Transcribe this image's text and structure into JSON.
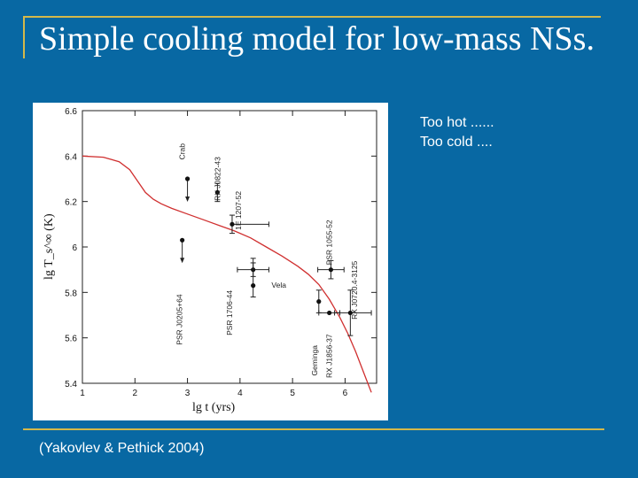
{
  "slide": {
    "title": "Simple cooling model for low-mass NSs.",
    "notes": [
      "Too hot ......",
      "Too cold ...."
    ],
    "citation": "(Yakovlev & Pethick 2004)"
  },
  "chart_data": {
    "type": "scatter",
    "title": "",
    "xlabel": "lg t   (yrs)",
    "ylabel": "lg T_s^∞  (K)",
    "xlim": [
      1,
      6.6
    ],
    "ylim": [
      5.4,
      6.6
    ],
    "xticks": [
      1,
      2,
      3,
      4,
      5,
      6
    ],
    "yticks": [
      5.4,
      5.6,
      5.8,
      6.0,
      6.2,
      6.4,
      6.6
    ],
    "xtick_labels": [
      "1",
      "2",
      "3",
      "4",
      "5",
      "6"
    ],
    "ytick_labels": [
      "5.4",
      "5.6",
      "5.8",
      "6",
      "6.2",
      "6.4",
      "6.6"
    ],
    "curve": {
      "name": "cooling curve",
      "color": "#d03030",
      "x": [
        1.0,
        1.4,
        1.7,
        1.9,
        2.05,
        2.2,
        2.35,
        2.5,
        2.7,
        3.0,
        3.3,
        3.6,
        3.9,
        4.2,
        4.5,
        4.8,
        5.1,
        5.3,
        5.5,
        5.7,
        5.9,
        6.05,
        6.2,
        6.3,
        6.4,
        6.5
      ],
      "y": [
        6.4,
        6.395,
        6.375,
        6.34,
        6.29,
        6.24,
        6.21,
        6.19,
        6.17,
        6.145,
        6.12,
        6.095,
        6.07,
        6.04,
        6.0,
        5.96,
        5.915,
        5.88,
        5.835,
        5.77,
        5.69,
        5.62,
        5.54,
        5.48,
        5.42,
        5.36
      ]
    },
    "sources": [
      {
        "name": "Crab",
        "x": 3.0,
        "y": 6.3,
        "xerr": [
          0,
          0
        ],
        "yerr": [
          0,
          0
        ],
        "upper_limit": true,
        "label_x": 2.95,
        "label_y": 6.42,
        "vertical": true
      },
      {
        "name": "RX J0822-43",
        "x": 3.57,
        "y": 6.24,
        "xerr": [
          0,
          0
        ],
        "yerr": [
          0.04,
          0.04
        ],
        "upper_limit": false,
        "label_x": 3.62,
        "label_y": 6.3,
        "vertical": true
      },
      {
        "name": "1E 1207-52",
        "x": 3.85,
        "y": 6.1,
        "xerr": [
          0,
          0.7
        ],
        "yerr": [
          0.04,
          0.04
        ],
        "upper_limit": false,
        "label_x": 4.02,
        "label_y": 6.16,
        "vertical": true
      },
      {
        "name": "PSR J0205+64",
        "x": 2.9,
        "y": 6.03,
        "xerr": [
          0,
          0
        ],
        "yerr": [
          0,
          0
        ],
        "upper_limit": true,
        "label_x": 2.9,
        "label_y": 5.68,
        "vertical": true
      },
      {
        "name": "PSR 1706-44",
        "x": 4.25,
        "y": 5.9,
        "xerr": [
          0.3,
          0.3
        ],
        "yerr": [
          0.03,
          0.03
        ],
        "upper_limit": false,
        "label_x": 3.85,
        "label_y": 5.71,
        "vertical": true
      },
      {
        "name": "Vela",
        "x": 4.25,
        "y": 5.83,
        "xerr": [
          0,
          0
        ],
        "yerr": [
          0.05,
          0.12
        ],
        "upper_limit": false,
        "label_x": 4.6,
        "label_y": 5.82,
        "vertical": false
      },
      {
        "name": "PSR 1055-52",
        "x": 5.73,
        "y": 5.9,
        "xerr": [
          0.25,
          0.25
        ],
        "yerr": [
          0.04,
          0.04
        ],
        "upper_limit": false,
        "label_x": 5.75,
        "label_y": 6.02,
        "vertical": true
      },
      {
        "name": "RX J0720.4-3125",
        "x": 6.1,
        "y": 5.71,
        "xerr": [
          0.3,
          0.4
        ],
        "yerr": [
          0.1,
          0.1
        ],
        "upper_limit": false,
        "label_x": 6.23,
        "label_y": 5.81,
        "vertical": true
      },
      {
        "name": "Geminga",
        "x": 5.5,
        "y": 5.76,
        "xerr": [
          0,
          0
        ],
        "yerr": [
          0.05,
          0.05
        ],
        "upper_limit": false,
        "label_x": 5.47,
        "label_y": 5.5,
        "vertical": true
      },
      {
        "name": "RX J1856-37",
        "x": 5.7,
        "y": 5.71,
        "xerr": [
          0.2,
          0.2
        ],
        "yerr": [
          0,
          0
        ],
        "upper_limit": false,
        "label_x": 5.75,
        "label_y": 5.52,
        "vertical": true
      }
    ]
  }
}
